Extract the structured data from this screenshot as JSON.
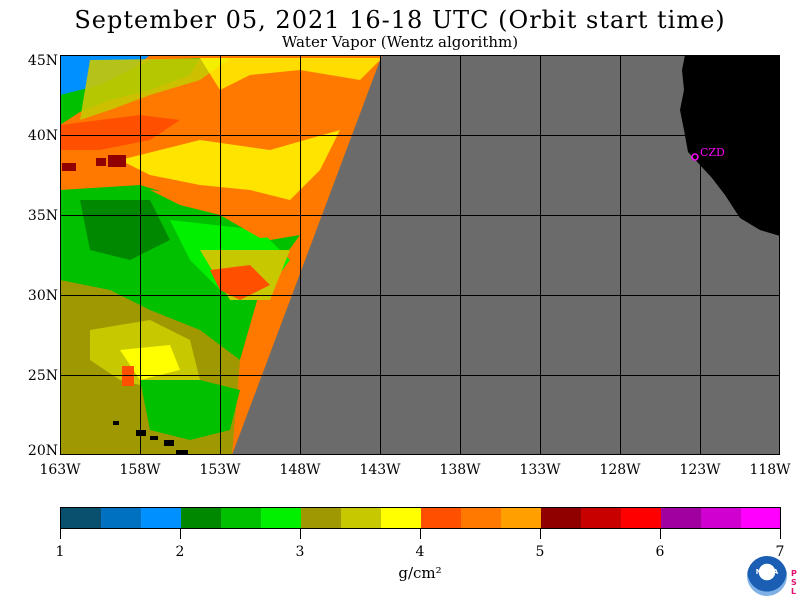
{
  "title": "September 05, 2021  16-18 UTC  (Orbit start time)",
  "subtitle": "Water Vapor (Wentz algorithm)",
  "latitude_labels": [
    "45N",
    "40N",
    "35N",
    "30N",
    "25N",
    "20N"
  ],
  "longitude_labels": [
    "163W",
    "158W",
    "153W",
    "148W",
    "143W",
    "138W",
    "133W",
    "128W",
    "123W",
    "118W"
  ],
  "colorbar": {
    "ticks": [
      "1",
      "2",
      "3",
      "4",
      "5",
      "6",
      "7"
    ],
    "units": "g/cm²",
    "colors": [
      "#08506e",
      "#0070c0",
      "#0090ff",
      "#008800",
      "#00c000",
      "#00f000",
      "#a09800",
      "#c8c800",
      "#ffff00",
      "#ff5000",
      "#ff7800",
      "#ffa000",
      "#900000",
      "#c80000",
      "#ff0000",
      "#a000a0",
      "#d000d0",
      "#ff00ff"
    ]
  },
  "map": {
    "no_data_color": "#6b6b6b",
    "land_color": "#000000",
    "marker_label": "CZD"
  },
  "logo": {
    "text": "NOAA",
    "side_text": [
      "P",
      "S",
      "L"
    ]
  }
}
